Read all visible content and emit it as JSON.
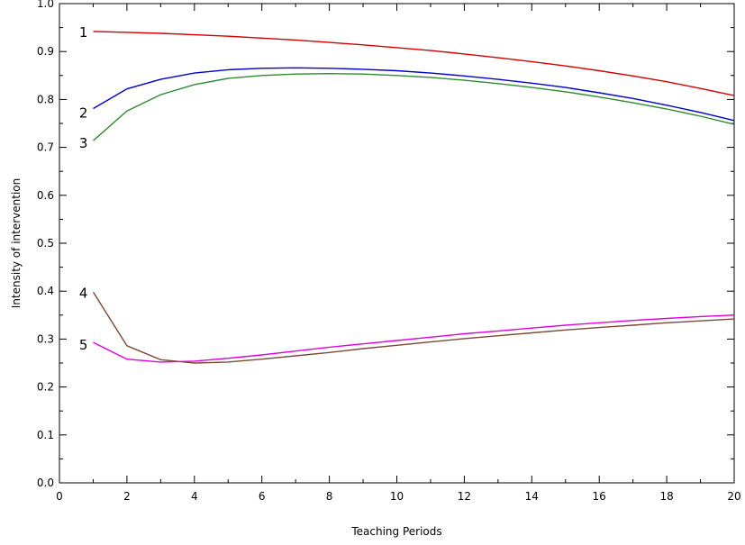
{
  "chart_data": {
    "type": "line",
    "title": "",
    "xlabel": "Teaching Periods",
    "ylabel": "Intensity of intervention",
    "xlim": [
      0,
      20
    ],
    "ylim": [
      0.0,
      1.0
    ],
    "x_ticks": [
      "0",
      "2",
      "4",
      "6",
      "8",
      "10",
      "12",
      "14",
      "16",
      "18",
      "20"
    ],
    "y_ticks": [
      "0.0",
      "0.1",
      "0.2",
      "0.3",
      "0.4",
      "0.5",
      "0.6",
      "0.7",
      "0.8",
      "0.9",
      "1.0"
    ],
    "grid": false,
    "legend": "none",
    "x": [
      1,
      2,
      3,
      4,
      5,
      6,
      7,
      8,
      9,
      10,
      11,
      12,
      13,
      14,
      15,
      16,
      17,
      18,
      19,
      20
    ],
    "series": [
      {
        "name": "1",
        "color": "#d40000",
        "values": [
          0.942,
          0.94,
          0.938,
          0.935,
          0.932,
          0.928,
          0.924,
          0.919,
          0.914,
          0.908,
          0.902,
          0.895,
          0.887,
          0.879,
          0.87,
          0.86,
          0.849,
          0.837,
          0.823,
          0.808
        ]
      },
      {
        "name": "2",
        "color": "#0000cc",
        "values": [
          0.781,
          0.822,
          0.842,
          0.855,
          0.862,
          0.865,
          0.866,
          0.865,
          0.863,
          0.86,
          0.855,
          0.849,
          0.842,
          0.834,
          0.825,
          0.814,
          0.802,
          0.788,
          0.773,
          0.756
        ]
      },
      {
        "name": "3",
        "color": "#2e8b2e",
        "values": [
          0.714,
          0.776,
          0.81,
          0.831,
          0.844,
          0.85,
          0.853,
          0.854,
          0.853,
          0.85,
          0.846,
          0.84,
          0.833,
          0.825,
          0.816,
          0.805,
          0.793,
          0.78,
          0.765,
          0.748
        ]
      },
      {
        "name": "4",
        "color": "#7a4a35",
        "values": [
          0.398,
          0.286,
          0.257,
          0.25,
          0.252,
          0.258,
          0.265,
          0.272,
          0.28,
          0.287,
          0.294,
          0.301,
          0.307,
          0.313,
          0.319,
          0.324,
          0.329,
          0.334,
          0.338,
          0.342
        ]
      },
      {
        "name": "5",
        "color": "#e000e0",
        "values": [
          0.293,
          0.258,
          0.252,
          0.254,
          0.26,
          0.267,
          0.275,
          0.283,
          0.29,
          0.297,
          0.304,
          0.311,
          0.317,
          0.323,
          0.329,
          0.334,
          0.339,
          0.343,
          0.347,
          0.35
        ]
      }
    ]
  }
}
